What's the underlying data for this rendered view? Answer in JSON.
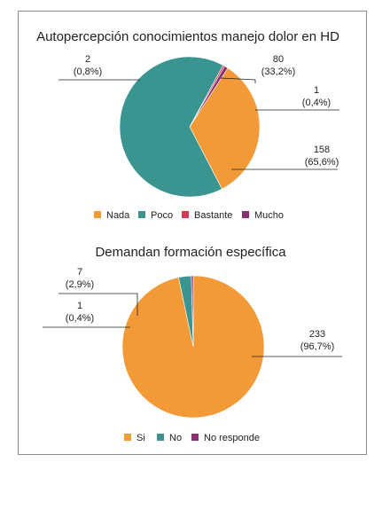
{
  "chart_data": [
    {
      "type": "pie",
      "title": "Autopercepción conocimientos manejo dolor en HD",
      "categories": [
        "Nada",
        "Poco",
        "Bastante",
        "Mucho"
      ],
      "values": [
        80,
        158,
        1,
        2
      ],
      "labels": [
        {
          "count": "80",
          "pct": "(33,2%)"
        },
        {
          "count": "158",
          "pct": "(65,6%)"
        },
        {
          "count": "1",
          "pct": "(0,4%)"
        },
        {
          "count": "2",
          "pct": "(0,8%)"
        }
      ],
      "colors": [
        "#f29a38",
        "#3a9590",
        "#d33a58",
        "#8b2f6e"
      ],
      "legend": "bottom"
    },
    {
      "type": "pie",
      "title": "Demandan formación específica",
      "categories": [
        "Si",
        "No",
        "No responde"
      ],
      "values": [
        233,
        7,
        1
      ],
      "labels": [
        {
          "count": "233",
          "pct": "(96,7%)"
        },
        {
          "count": "7",
          "pct": "(2,9%)"
        },
        {
          "count": "1",
          "pct": "(0,4%)"
        }
      ],
      "colors": [
        "#f29a38",
        "#3a9590",
        "#8b2f6e"
      ],
      "legend": "bottom"
    }
  ]
}
